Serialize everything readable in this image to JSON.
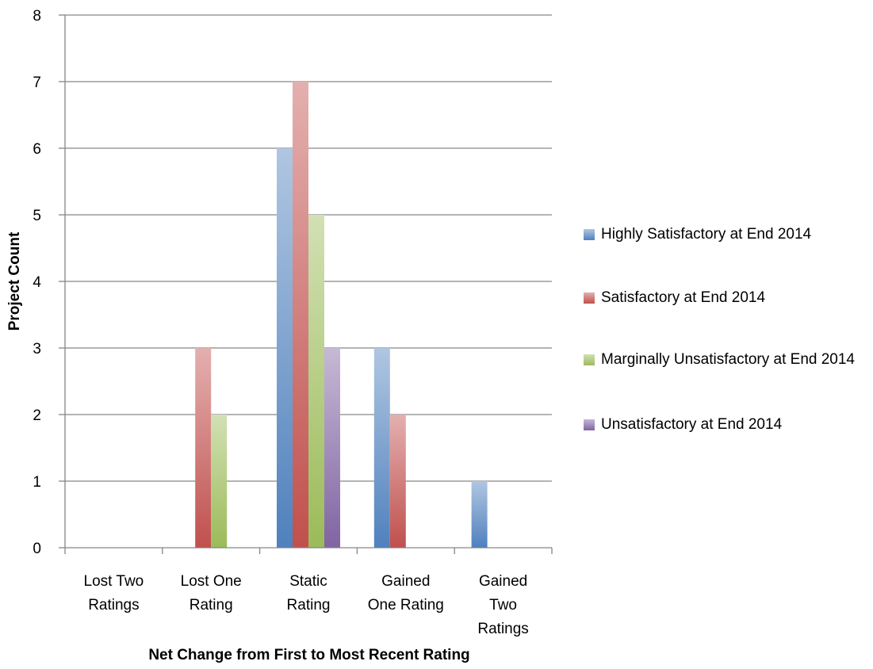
{
  "chart_data": {
    "type": "bar",
    "title": "",
    "xlabel": "Net Change from First to Most Recent Rating",
    "ylabel": "Project Count",
    "ylim": [
      0,
      8
    ],
    "yticks": [
      "0",
      "1",
      "2",
      "3",
      "4",
      "5",
      "6",
      "7",
      "8"
    ],
    "grid": true,
    "legend_position": "right",
    "categories": [
      [
        "Lost Two",
        "Ratings"
      ],
      [
        "Lost One",
        "Rating"
      ],
      [
        "Static",
        "Rating"
      ],
      [
        "Gained",
        "One Rating"
      ],
      [
        "Gained",
        "Two",
        "Ratings"
      ]
    ],
    "series": [
      {
        "name": "Highly Satisfactory at End 2014",
        "color": "#4f81bd",
        "values": [
          0,
          0,
          6,
          3,
          1
        ]
      },
      {
        "name": "Satisfactory at End 2014",
        "color": "#c0504d",
        "values": [
          0,
          3,
          7,
          2,
          0
        ]
      },
      {
        "name": "Marginally Unsatisfactory at End 2014",
        "color": "#9bbb59",
        "values": [
          0,
          2,
          5,
          0,
          0
        ]
      },
      {
        "name": "Unsatisfactory at End 2014",
        "color": "#8064a2",
        "values": [
          0,
          0,
          3,
          0,
          0
        ]
      }
    ]
  }
}
